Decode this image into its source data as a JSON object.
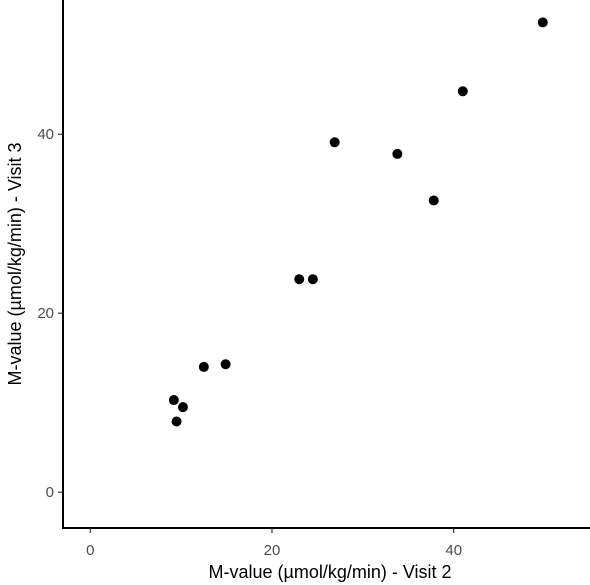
{
  "chart_data": {
    "type": "scatter",
    "title": "",
    "xlabel": "M-value (µmol/kg/min) - Visit 2",
    "ylabel": "M-value (µmol/kg/min) - Visit 3",
    "xlim": [
      -3,
      55
    ],
    "ylim": [
      -4,
      55
    ],
    "xticks": [
      0,
      20,
      40
    ],
    "yticks": [
      0,
      20,
      40
    ],
    "xtick_labels": [
      "0",
      "20",
      "40"
    ],
    "ytick_labels": [
      "0",
      "20",
      "40"
    ],
    "grid": false,
    "legend": "none",
    "point_color": "#000000",
    "series": [
      {
        "x": [
          9.2,
          9.5,
          10.2,
          12.5,
          14.9,
          23.0,
          24.5,
          26.9,
          33.8,
          37.8,
          41.0,
          49.8
        ],
        "y": [
          10.3,
          7.9,
          9.5,
          14.0,
          14.3,
          23.8,
          23.8,
          39.1,
          37.8,
          32.6,
          44.8,
          52.5
        ]
      }
    ]
  }
}
